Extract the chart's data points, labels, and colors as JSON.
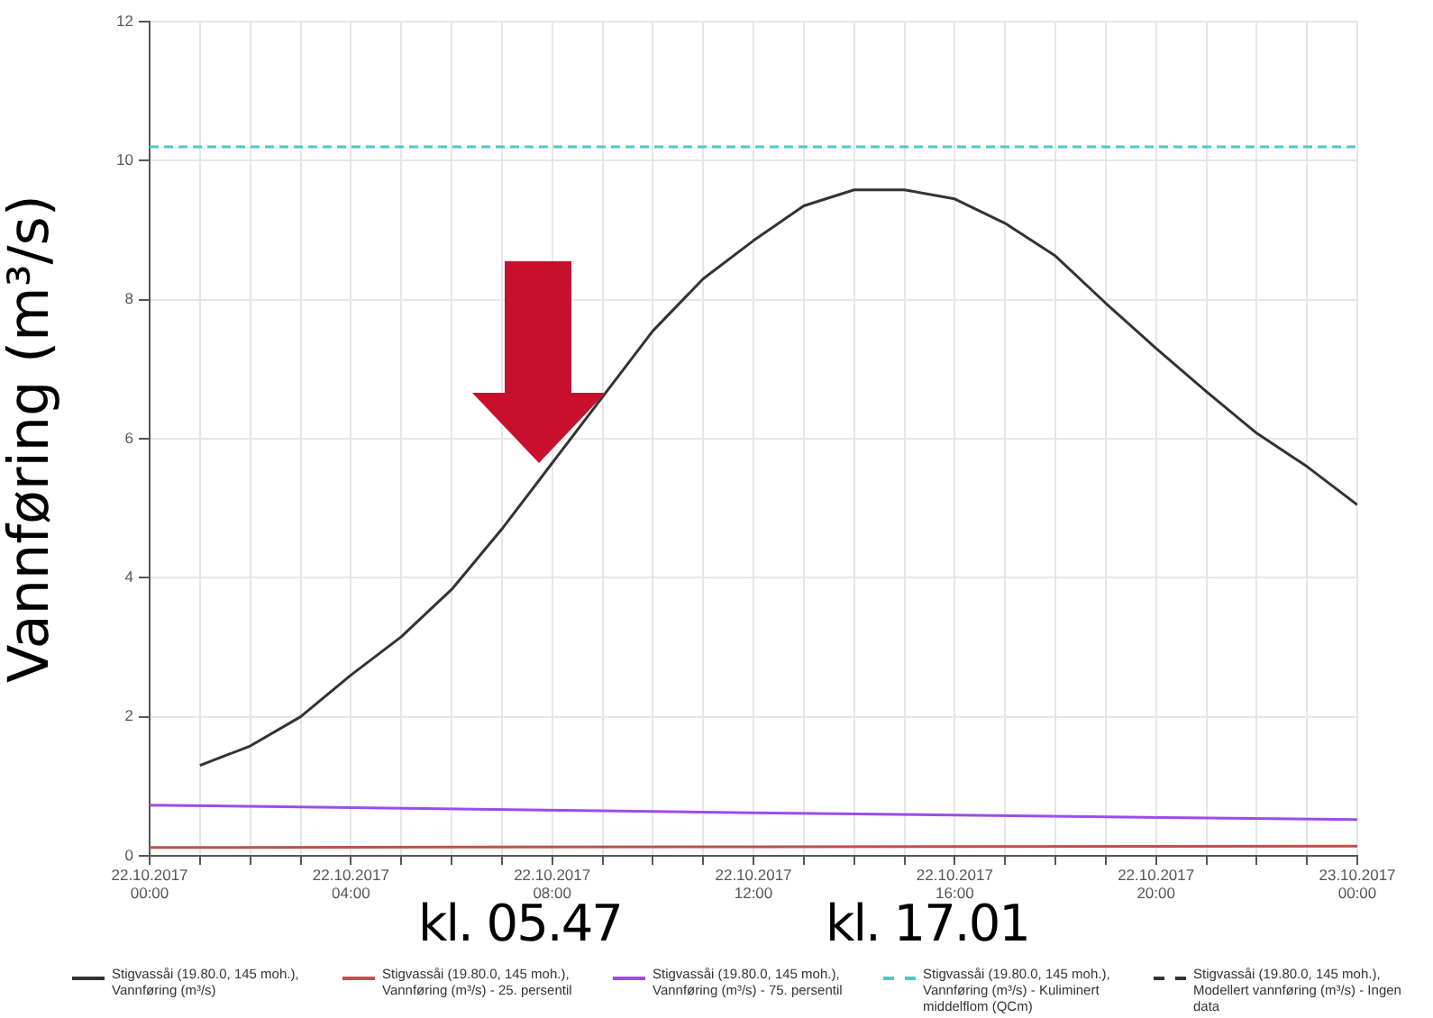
{
  "chart_data": {
    "type": "line",
    "ylabel": "Vannføring (m³/s)",
    "xlim": [
      "2017-10-22T00:00",
      "2017-10-23T00:00"
    ],
    "ylim": [
      0,
      12
    ],
    "yticks": [
      0,
      2,
      4,
      6,
      8,
      10,
      12
    ],
    "xticks": [
      {
        "value": "2017-10-22T00:00",
        "label": "22.10.2017\n00:00"
      },
      {
        "value": "2017-10-22T01:00",
        "label": null
      },
      {
        "value": "2017-10-22T02:00",
        "label": null
      },
      {
        "value": "2017-10-22T03:00",
        "label": null
      },
      {
        "value": "2017-10-22T04:00",
        "label": "22.10.2017\n04:00"
      },
      {
        "value": "2017-10-22T05:00",
        "label": null
      },
      {
        "value": "2017-10-22T06:00",
        "label": null
      },
      {
        "value": "2017-10-22T07:00",
        "label": null
      },
      {
        "value": "2017-10-22T08:00",
        "label": "22.10.2017\n08:00"
      },
      {
        "value": "2017-10-22T09:00",
        "label": null
      },
      {
        "value": "2017-10-22T10:00",
        "label": null
      },
      {
        "value": "2017-10-22T11:00",
        "label": null
      },
      {
        "value": "2017-10-22T12:00",
        "label": "22.10.2017\n12:00"
      },
      {
        "value": "2017-10-22T13:00",
        "label": null
      },
      {
        "value": "2017-10-22T14:00",
        "label": null
      },
      {
        "value": "2017-10-22T15:00",
        "label": null
      },
      {
        "value": "2017-10-22T16:00",
        "label": "22.10.2017\n16:00"
      },
      {
        "value": "2017-10-22T17:00",
        "label": null
      },
      {
        "value": "2017-10-22T18:00",
        "label": null
      },
      {
        "value": "2017-10-22T19:00",
        "label": null
      },
      {
        "value": "2017-10-22T20:00",
        "label": "22.10.2017\n20:00"
      },
      {
        "value": "2017-10-22T21:00",
        "label": null
      },
      {
        "value": "2017-10-22T22:00",
        "label": null
      },
      {
        "value": "2017-10-22T23:00",
        "label": null
      },
      {
        "value": "2017-10-23T00:00",
        "label": "23.10.2017\n00:00"
      }
    ],
    "grid": true,
    "legend": "bottom",
    "marker": "none",
    "series": [
      {
        "name": "Stigvassåi (19.80.0, 145 moh.), Vannføring (m³/s)",
        "color": "#333333",
        "line_style": "solid",
        "x": [
          "2017-10-22T01:00",
          "2017-10-22T02:00",
          "2017-10-22T03:00",
          "2017-10-22T04:00",
          "2017-10-22T05:00",
          "2017-10-22T06:00",
          "2017-10-22T07:00",
          "2017-10-22T08:00",
          "2017-10-22T09:00",
          "2017-10-22T10:00",
          "2017-10-22T11:00",
          "2017-10-22T12:00",
          "2017-10-22T13:00",
          "2017-10-22T14:00",
          "2017-10-22T15:00",
          "2017-10-22T16:00",
          "2017-10-22T17:00",
          "2017-10-22T18:00",
          "2017-10-22T19:00",
          "2017-10-22T20:00",
          "2017-10-22T21:00",
          "2017-10-22T22:00",
          "2017-10-22T23:00",
          "2017-10-23T00:00"
        ],
        "values": [
          1.3,
          1.58,
          2.0,
          2.6,
          3.15,
          3.83,
          4.7,
          5.65,
          6.6,
          7.55,
          8.3,
          8.85,
          9.35,
          9.58,
          9.58,
          9.45,
          9.1,
          8.63,
          7.95,
          7.3,
          6.68,
          6.08,
          5.6,
          5.05
        ]
      },
      {
        "name": "Stigvassåi (19.80.0, 145 moh.), Vannføring (m³/s) - 25. persentil",
        "color": "#c0504d",
        "line_style": "solid",
        "x": [
          "2017-10-22T00:00",
          "2017-10-22T12:00",
          "2017-10-23T00:00"
        ],
        "values": [
          0.12,
          0.13,
          0.14
        ]
      },
      {
        "name": "Stigvassåi (19.80.0, 145 moh.), Vannføring (m³/s) - 75. persentil",
        "color": "#9b4dea",
        "line_style": "solid",
        "x": [
          "2017-10-22T00:00",
          "2017-10-22T12:00",
          "2017-10-23T00:00"
        ],
        "values": [
          0.73,
          0.62,
          0.52
        ]
      },
      {
        "name": "Stigvassåi (19.80.0, 145 moh.), Vannføring (m³/s) - Kuliminert middelflom (QCm)",
        "color": "#4fc7c7",
        "line_style": "dashed",
        "x": [
          "2017-10-22T00:00",
          "2017-10-23T00:00"
        ],
        "values": [
          10.2,
          10.2
        ]
      },
      {
        "name": "Stigvassåi (19.80.0, 145 moh.), Modellert vannføring (m³/s) - Ingen data",
        "color": "#333333",
        "line_style": "dashed"
      }
    ],
    "annotations": [
      "kl. 05.47",
      "kl. 17.01"
    ]
  }
}
